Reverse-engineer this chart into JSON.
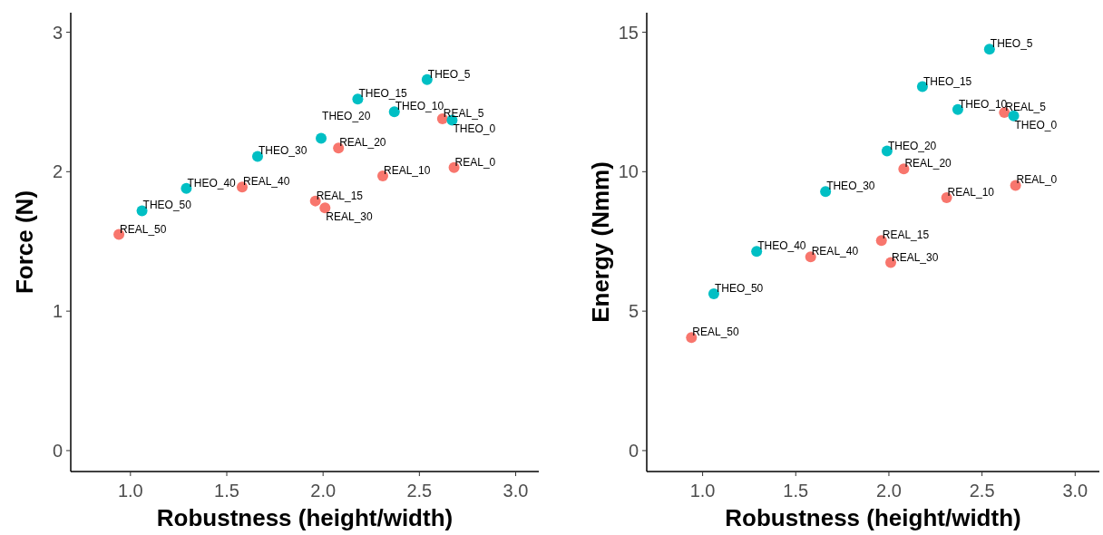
{
  "chart_data": [
    {
      "type": "scatter",
      "xlabel": "Robustness (height/width)",
      "ylabel": "Force (N)",
      "xlim": [
        0.69,
        3.12
      ],
      "ylim": [
        -0.15,
        3.14
      ],
      "xticks": [
        {
          "value": 1,
          "label": "1.0"
        },
        {
          "value": 1.5,
          "label": "1.5"
        },
        {
          "value": 2,
          "label": "2.0"
        },
        {
          "value": 2.5,
          "label": "2.5"
        },
        {
          "value": 3,
          "label": "3.0"
        }
      ],
      "yticks": [
        0,
        1,
        2,
        3
      ],
      "grid": false,
      "marker": "circle",
      "series": [
        {
          "color": "#f8766d",
          "x": [
            2.68,
            2.62,
            2.31,
            1.96,
            2.08,
            2.01,
            1.58,
            0.94
          ],
          "values": [
            2.03,
            2.38,
            1.97,
            1.79,
            2.17,
            1.74,
            1.89,
            1.55
          ]
        },
        {
          "color": "#00bfc4",
          "x": [
            2.67,
            2.54,
            2.37,
            2.18,
            1.99,
            1.66,
            1.29,
            1.06
          ],
          "values": [
            2.37,
            2.66,
            2.43,
            2.52,
            2.24,
            2.11,
            1.88,
            1.72
          ]
        }
      ],
      "annotations": [
        {
          "text": "REAL_0",
          "x": 2.68,
          "y": 2.03
        },
        {
          "text": "REAL_5",
          "x": 2.62,
          "y": 2.38
        },
        {
          "text": "REAL_10",
          "x": 2.31,
          "y": 1.97
        },
        {
          "text": "REAL_15",
          "x": 1.96,
          "y": 1.79
        },
        {
          "text": "REAL_20",
          "x": 2.08,
          "y": 2.17
        },
        {
          "text": "REAL_30",
          "x": 2.01,
          "y": 1.74
        },
        {
          "text": "REAL_40",
          "x": 1.58,
          "y": 1.89
        },
        {
          "text": "REAL_50",
          "x": 0.94,
          "y": 1.55
        },
        {
          "text": "THEO_0",
          "x": 2.67,
          "y": 2.37
        },
        {
          "text": "THEO_5",
          "x": 2.54,
          "y": 2.66
        },
        {
          "text": "THEO_10",
          "x": 2.37,
          "y": 2.43
        },
        {
          "text": "THEO_15",
          "x": 2.18,
          "y": 2.52
        },
        {
          "text": "THEO_20",
          "x": 1.99,
          "y": 2.24
        },
        {
          "text": "THEO_30",
          "x": 1.66,
          "y": 2.11
        },
        {
          "text": "THEO_40",
          "x": 1.29,
          "y": 1.88
        },
        {
          "text": "THEO_50",
          "x": 1.06,
          "y": 1.72
        }
      ]
    },
    {
      "type": "scatter",
      "xlabel": "Robustness (height/width)",
      "ylabel": "Energy (Nmm)",
      "xlim": [
        0.7,
        3.13
      ],
      "ylim": [
        -0.75,
        15.7
      ],
      "xticks": [
        {
          "value": 1,
          "label": "1.0"
        },
        {
          "value": 1.5,
          "label": "1.5"
        },
        {
          "value": 2,
          "label": "2.0"
        },
        {
          "value": 2.5,
          "label": "2.5"
        },
        {
          "value": 3,
          "label": "3.0"
        }
      ],
      "yticks": [
        0,
        5,
        10,
        15
      ],
      "grid": false,
      "marker": "circle",
      "series": [
        {
          "color": "#f8766d",
          "x": [
            2.68,
            2.62,
            2.31,
            1.96,
            2.08,
            2.01,
            1.58,
            0.94
          ],
          "values": [
            9.51,
            12.12,
            9.07,
            7.53,
            10.1,
            6.74,
            6.95,
            4.05
          ]
        },
        {
          "color": "#00bfc4",
          "x": [
            2.67,
            2.54,
            2.37,
            2.18,
            1.99,
            1.66,
            1.29,
            1.06
          ],
          "values": [
            12.0,
            14.39,
            12.23,
            13.05,
            10.74,
            9.29,
            7.14,
            5.62
          ]
        }
      ],
      "annotations": [
        {
          "text": "REAL_0",
          "x": 2.68,
          "y": 9.51
        },
        {
          "text": "REAL_5",
          "x": 2.62,
          "y": 12.12
        },
        {
          "text": "REAL_10",
          "x": 2.31,
          "y": 9.07
        },
        {
          "text": "REAL_15",
          "x": 1.96,
          "y": 7.53
        },
        {
          "text": "REAL_20",
          "x": 2.08,
          "y": 10.1
        },
        {
          "text": "REAL_30",
          "x": 2.01,
          "y": 6.74
        },
        {
          "text": "REAL_40",
          "x": 1.58,
          "y": 6.95
        },
        {
          "text": "REAL_50",
          "x": 0.94,
          "y": 4.05
        },
        {
          "text": "THEO_0",
          "x": 2.67,
          "y": 12.0
        },
        {
          "text": "THEO_5",
          "x": 2.54,
          "y": 14.39
        },
        {
          "text": "THEO_10",
          "x": 2.37,
          "y": 12.23
        },
        {
          "text": "THEO_15",
          "x": 2.18,
          "y": 13.05
        },
        {
          "text": "THEO_20",
          "x": 1.99,
          "y": 10.74
        },
        {
          "text": "THEO_30",
          "x": 1.66,
          "y": 9.29
        },
        {
          "text": "THEO_40",
          "x": 1.29,
          "y": 7.14
        },
        {
          "text": "THEO_50",
          "x": 1.06,
          "y": 5.62
        }
      ]
    }
  ]
}
